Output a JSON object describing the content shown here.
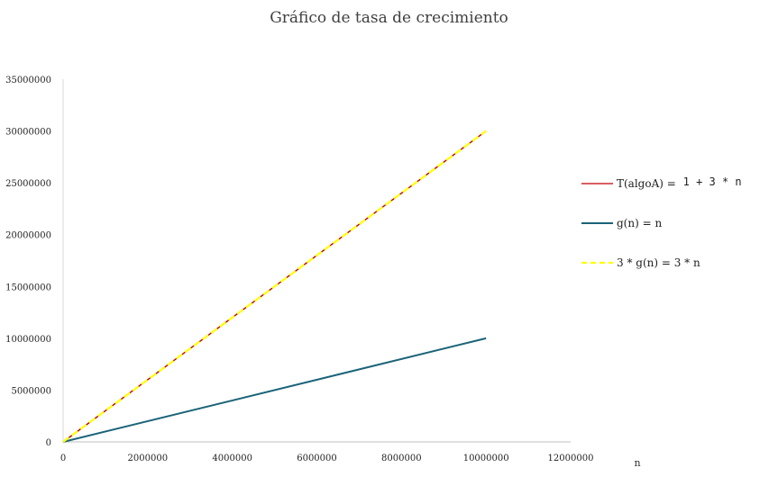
{
  "chart_data": {
    "type": "line",
    "title": "Gráfico de tasa de crecimiento",
    "xlabel": "n",
    "ylabel": "",
    "xlim": [
      0,
      12000000
    ],
    "ylim": [
      0,
      35000000
    ],
    "x_ticks": [
      "0",
      "2000000",
      "4000000",
      "6000000",
      "8000000",
      "10000000",
      "12000000"
    ],
    "y_ticks": [
      "0",
      "5000000",
      "10000000",
      "15000000",
      "20000000",
      "25000000",
      "30000000",
      "35000000"
    ],
    "grid": false,
    "legend_position": "right",
    "series": [
      {
        "name_main": "T(algoA) = ",
        "name_code": "1 + 3 * n",
        "color": "#c00000",
        "dash": "solid",
        "points": [
          [
            0,
            1
          ],
          [
            10000000,
            30000001
          ]
        ]
      },
      {
        "name_main": "g(n) = n",
        "name_code": "",
        "color": "#1a6378",
        "dash": "solid",
        "points": [
          [
            0,
            0
          ],
          [
            10000000,
            10000000
          ]
        ]
      },
      {
        "name_main": "3 * g(n) = 3 *  n",
        "name_code": "",
        "color": "#ffff00",
        "dash": "dashed",
        "points": [
          [
            0,
            0
          ],
          [
            10000000,
            30000000
          ]
        ]
      }
    ]
  }
}
